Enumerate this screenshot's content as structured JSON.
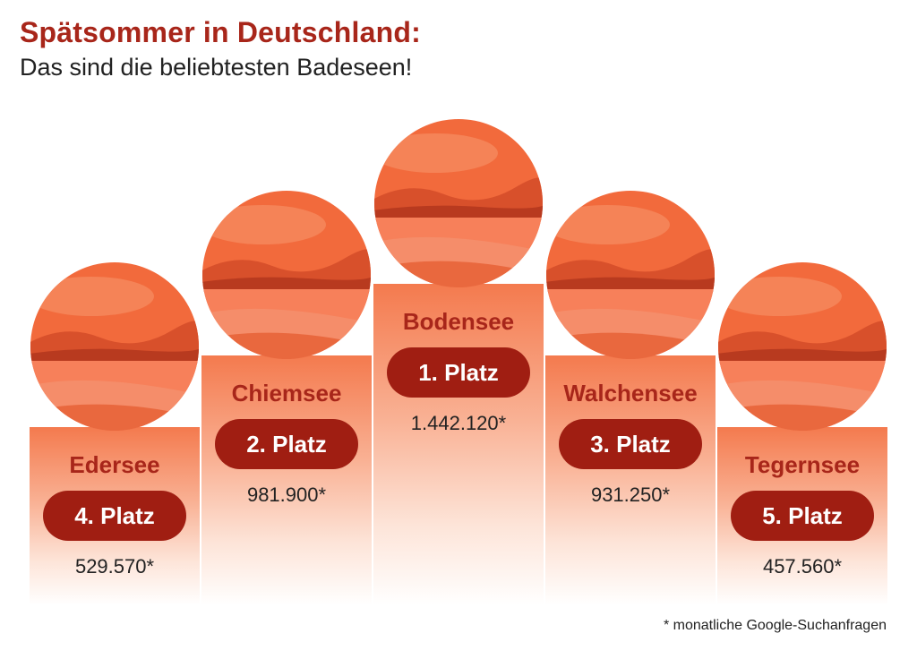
{
  "title": "Spätsommer in Deutschland:",
  "subtitle": "Das sind die beliebtesten Badeseen!",
  "footnote": "* monatliche Google-Suchanfragen",
  "colors": {
    "accent": "#a8261a",
    "pill": "#a01e12",
    "bar_top": "#f47a4e",
    "image_tone": "#f26a3c"
  },
  "chart_data": {
    "type": "bar",
    "categories": [
      "Edersee",
      "Chiemsee",
      "Bodensee",
      "Walchensee",
      "Tegernsee"
    ],
    "ranks": [
      "4. Platz",
      "2. Platz",
      "1. Platz",
      "3. Platz",
      "5. Platz"
    ],
    "value_labels": [
      "529.570*",
      "981.900*",
      "1.442.120*",
      "931.250*",
      "457.560*"
    ],
    "values": [
      529570,
      981900,
      1442120,
      931250,
      457560
    ],
    "title": "Spätsommer in Deutschland:",
    "subtitle": "Das sind die beliebtesten Badeseen!",
    "xlabel": "",
    "ylabel": "",
    "grid": false,
    "legend": "none"
  }
}
